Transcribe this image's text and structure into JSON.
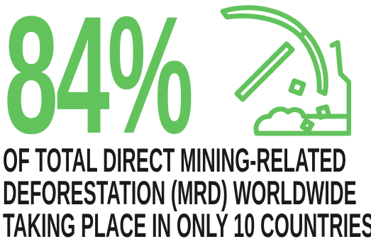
{
  "stat": {
    "value": "84%"
  },
  "icon": {
    "name": "pickaxe-icon",
    "color": "#62c35c"
  },
  "caption": {
    "lines": [
      "OF TOTAL DIRECT MINING-RELATED",
      "DEFORESTATION (MRD) WORLDWIDE",
      "TAKING PLACE IN ONLY 10 COUNTRIES."
    ],
    "color": "#1a1a1a"
  }
}
